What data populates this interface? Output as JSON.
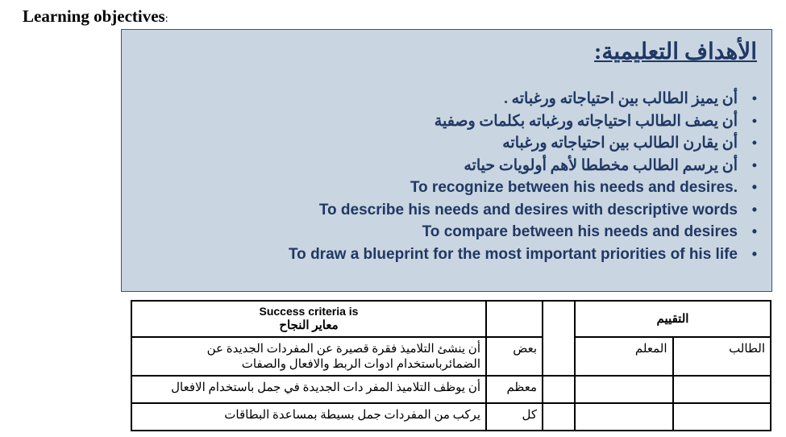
{
  "heading_en": "Learning objectives",
  "heading_colon": ":",
  "objectives_box": {
    "title_ar": "الأهداف التعليمية:",
    "items": [
      {
        "lang": "ar",
        "text": "أن يميز الطالب بين احتياجاته ورغباته ."
      },
      {
        "lang": "ar",
        "text": "أن يصف الطالب احتياجاته ورغباته بكلمات وصفية"
      },
      {
        "lang": "ar",
        "text": "أن يقارن الطالب بين احتياجاته ورغباته"
      },
      {
        "lang": "ar",
        "text": "أن يرسم الطالب مخططا لأهم أولويات حياته"
      },
      {
        "lang": "en",
        "text": "To recognize between his needs and desires."
      },
      {
        "lang": "en",
        "text": "To describe his needs and desires with  descriptive words"
      },
      {
        "lang": "en",
        "text": "To compare between his needs and desires"
      },
      {
        "lang": "en",
        "text": "To draw a blueprint for the most important priorities of his life"
      }
    ]
  },
  "table": {
    "headers": {
      "success_en": "Success criteria is",
      "success_ar": "معاير النجاح",
      "assessment": "التقييم",
      "teacher": "المعلم",
      "student": "الطالب"
    },
    "rows": [
      {
        "criterion": "أن ينشئ التلاميذ فقرة قصيرة عن المفردات الجديدة  عن الضمائرباستخدام ادوات  الربط والافعال والصفات",
        "qty": "بعض"
      },
      {
        "criterion": "أن يوظف التلاميذ المفر دات الجديدة  في جمل باستخدام الافعال",
        "qty": "معظم"
      },
      {
        "criterion": "يركب من المفردات جمل بسيطة بمساعدة البطاقات",
        "qty": "كل"
      }
    ]
  },
  "colors": {
    "box_bg": "#c9d5e0",
    "box_border": "#2f5496",
    "text_navy": "#1f3864",
    "black": "#000000",
    "white": "#ffffff"
  }
}
